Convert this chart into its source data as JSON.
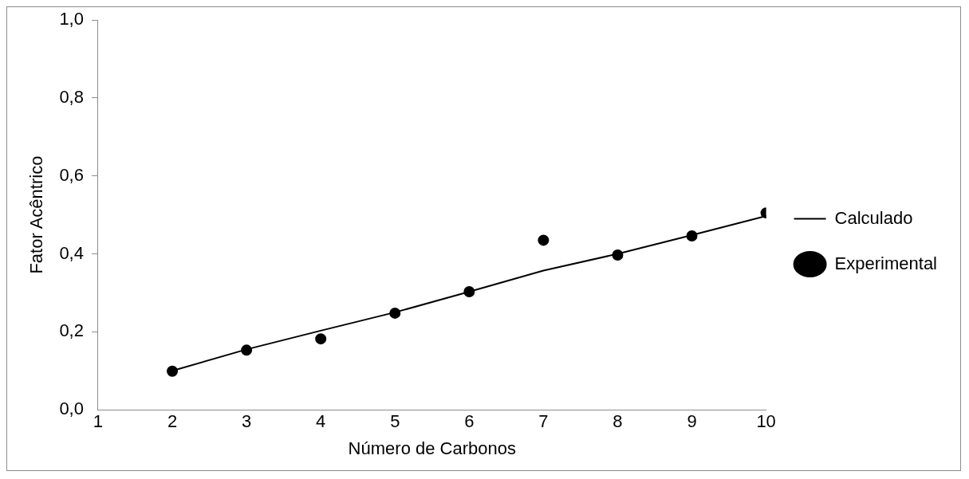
{
  "chart_data": {
    "type": "line",
    "xlabel": "Número de Carbonos",
    "ylabel": "Fator Acêntrico",
    "x": [
      2,
      3,
      4,
      5,
      6,
      7,
      8,
      9,
      10
    ],
    "series": [
      {
        "name": "Calculado",
        "type": "line",
        "color": "#000000",
        "marker": "none",
        "values": [
          0.1,
          0.155,
          0.203,
          0.25,
          0.303,
          0.357,
          0.4,
          0.448,
          0.497
        ]
      },
      {
        "name": "Experimental",
        "type": "scatter",
        "color": "#000000",
        "marker": "circle",
        "values": [
          0.099,
          0.153,
          0.182,
          0.248,
          0.303,
          0.435,
          0.397,
          0.446,
          0.505
        ]
      }
    ],
    "xlim": [
      1,
      10
    ],
    "xticks": [
      1,
      2,
      3,
      4,
      5,
      6,
      7,
      8,
      9,
      10
    ],
    "ylim": [
      0,
      1
    ],
    "yticks": [
      {
        "value": 0,
        "label": "0,0"
      },
      {
        "value": 0.2,
        "label": "0,2"
      },
      {
        "value": 0.4,
        "label": "0,4"
      },
      {
        "value": 0.6,
        "label": "0,6"
      },
      {
        "value": 0.8,
        "label": "0,8"
      },
      {
        "value": 1,
        "label": "1,0"
      }
    ],
    "grid": false,
    "legend": "right"
  }
}
